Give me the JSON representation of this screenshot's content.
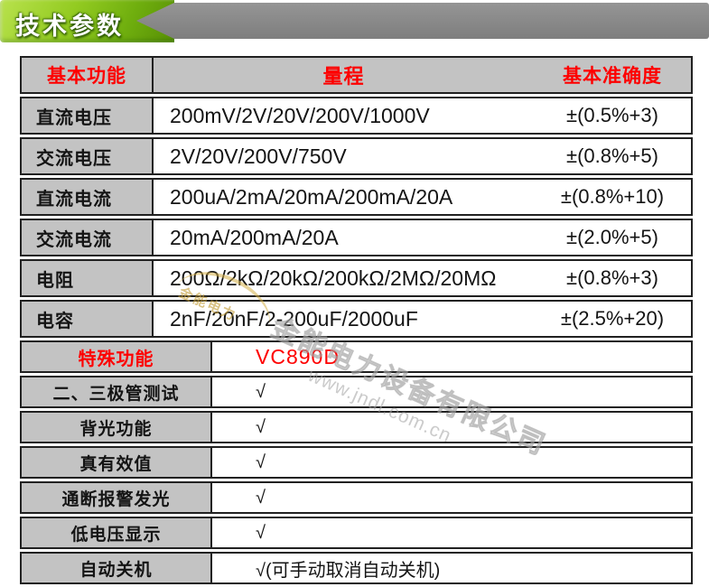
{
  "banner": {
    "title": "技术参数"
  },
  "colors": {
    "accent_red": "#fe0000",
    "cell_gray": "#c3c3c3",
    "border": "#212121",
    "banner_green_light": "#b9e24d",
    "banner_green_dark": "#578f05",
    "banner_gray": "#868686",
    "watermark_gold": "#c39e3a",
    "watermark_gray": "#bababa"
  },
  "spec_table": {
    "headers": [
      "基本功能",
      "量程",
      "基本准确度"
    ],
    "rows": [
      {
        "label": "直流电压",
        "range": "200mV/2V/20V/200V/1000V",
        "accuracy": "±(0.5%+3)"
      },
      {
        "label": "交流电压",
        "range": "2V/20V/200V/750V",
        "accuracy": "±(0.8%+5)"
      },
      {
        "label": "直流电流",
        "range": "200uA/2mA/20mA/200mA/20A",
        "accuracy": "±(0.8%+10)"
      },
      {
        "label": "交流电流",
        "range": "20mA/200mA/20A",
        "accuracy": "±(2.0%+5)"
      },
      {
        "label": "电阻",
        "range": "200Ω/2kΩ/20kΩ/200kΩ/2MΩ/20MΩ",
        "accuracy": "±(0.8%+3)"
      },
      {
        "label": "电容",
        "range": "2nF/20nF/2-200uF/2000uF",
        "accuracy": "±(2.5%+20)"
      }
    ]
  },
  "feature_table": {
    "header_label": "特殊功能",
    "header_value": "VC890D",
    "rows": [
      {
        "label": "二、三极管测试",
        "value": "√"
      },
      {
        "label": "背光功能",
        "value": "√"
      },
      {
        "label": "真有效值",
        "value": "√"
      },
      {
        "label": "通断报警发光",
        "value": "√"
      },
      {
        "label": "低电压显示",
        "value": "√"
      },
      {
        "label": "自动关机",
        "value": "√(可手动取消自动关机)"
      }
    ]
  },
  "watermark": {
    "brand": "金能电力",
    "company": "金能电力设备有限公司",
    "url": "www.jndl.com.cn"
  }
}
